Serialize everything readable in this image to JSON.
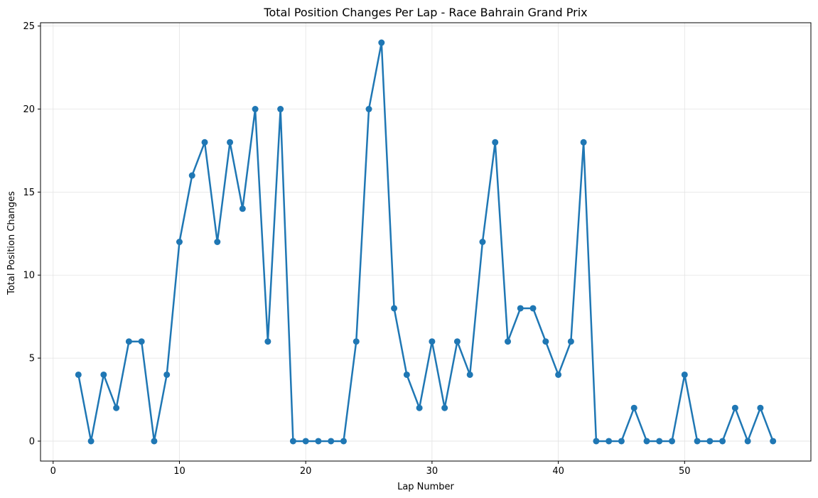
{
  "chart_data": {
    "type": "line",
    "title": "Total Position Changes Per Lap - Race Bahrain Grand Prix",
    "xlabel": "Lap Number",
    "ylabel": "Total Position Changes",
    "xlim": [
      -1,
      60
    ],
    "ylim": [
      -1.2,
      25.2
    ],
    "xticks": [
      0,
      10,
      20,
      30,
      40,
      50
    ],
    "yticks": [
      0,
      5,
      10,
      15,
      20,
      25
    ],
    "grid": true,
    "series": [
      {
        "color": "#1f77b4",
        "marker": "circle",
        "x": [
          2,
          3,
          4,
          5,
          6,
          7,
          8,
          9,
          10,
          11,
          12,
          13,
          14,
          15,
          16,
          17,
          18,
          19,
          20,
          21,
          22,
          23,
          24,
          25,
          26,
          27,
          28,
          29,
          30,
          31,
          32,
          33,
          34,
          35,
          36,
          37,
          38,
          39,
          40,
          41,
          42,
          43,
          44,
          45,
          46,
          47,
          48,
          49,
          50,
          51,
          52,
          53,
          54,
          55,
          56,
          57
        ],
        "y": [
          4,
          0,
          4,
          2,
          6,
          6,
          0,
          4,
          12,
          16,
          18,
          12,
          18,
          14,
          20,
          6,
          20,
          0,
          0,
          0,
          0,
          0,
          6,
          20,
          24,
          8,
          4,
          2,
          6,
          2,
          6,
          4,
          12,
          18,
          6,
          8,
          8,
          6,
          4,
          6,
          18,
          0,
          0,
          0,
          2,
          0,
          0,
          0,
          4,
          0,
          0,
          0,
          2,
          0,
          2,
          0
        ]
      }
    ]
  }
}
